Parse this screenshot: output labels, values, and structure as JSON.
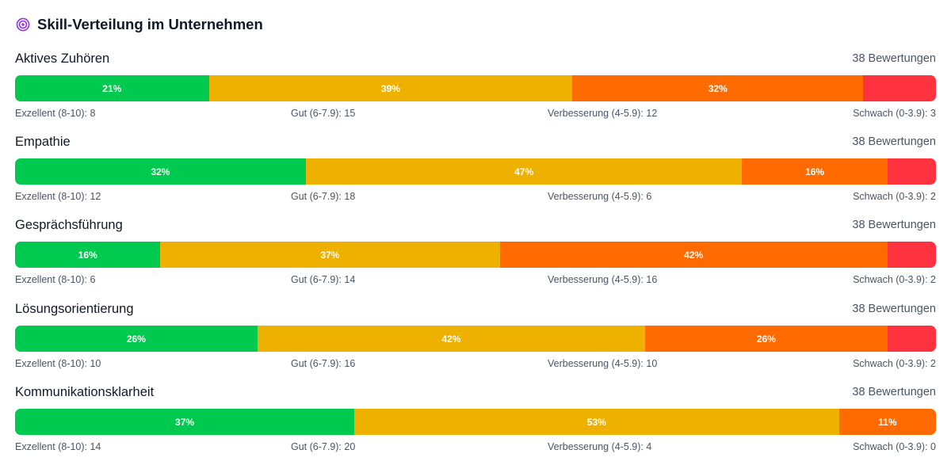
{
  "title": "Skill-Verteilung im Unternehmen",
  "icon": "target-icon",
  "colors": {
    "excellent": "#00c94f",
    "good": "#efb100",
    "improve": "#ff6b00",
    "weak": "#fe333f"
  },
  "chart_data": {
    "type": "bar",
    "stacked": "horizontal-100-percent",
    "categories": [
      "Exzellent (8-10)",
      "Gut (6-7.9)",
      "Verbesserung (4-5.9)",
      "Schwach (0-3.9)"
    ],
    "skills": [
      {
        "name": "Aktives Zuhören",
        "count_label": "38 Bewertungen",
        "counts": [
          8,
          15,
          12,
          3
        ],
        "labels": [
          "21%",
          "39%",
          "32%",
          ""
        ],
        "legend": [
          "Exzellent (8-10): 8",
          "Gut (6-7.9): 15",
          "Verbesserung (4-5.9): 12",
          "Schwach (0-3.9): 3"
        ]
      },
      {
        "name": "Empathie",
        "count_label": "38 Bewertungen",
        "counts": [
          12,
          18,
          6,
          2
        ],
        "labels": [
          "32%",
          "47%",
          "16%",
          ""
        ],
        "legend": [
          "Exzellent (8-10): 12",
          "Gut (6-7.9): 18",
          "Verbesserung (4-5.9): 6",
          "Schwach (0-3.9): 2"
        ]
      },
      {
        "name": "Gesprächsführung",
        "count_label": "38 Bewertungen",
        "counts": [
          6,
          14,
          16,
          2
        ],
        "labels": [
          "16%",
          "37%",
          "42%",
          ""
        ],
        "legend": [
          "Exzellent (8-10): 6",
          "Gut (6-7.9): 14",
          "Verbesserung (4-5.9): 16",
          "Schwach (0-3.9): 2"
        ]
      },
      {
        "name": "Lösungsorientierung",
        "count_label": "38 Bewertungen",
        "counts": [
          10,
          16,
          10,
          2
        ],
        "labels": [
          "26%",
          "42%",
          "26%",
          ""
        ],
        "legend": [
          "Exzellent (8-10): 10",
          "Gut (6-7.9): 16",
          "Verbesserung (4-5.9): 10",
          "Schwach (0-3.9): 2"
        ]
      },
      {
        "name": "Kommunikationsklarheit",
        "count_label": "38 Bewertungen",
        "counts": [
          14,
          20,
          4,
          0
        ],
        "labels": [
          "37%",
          "53%",
          "11%",
          ""
        ],
        "legend": [
          "Exzellent (8-10): 14",
          "Gut (6-7.9): 20",
          "Verbesserung (4-5.9): 4",
          "Schwach (0-3.9): 0"
        ]
      }
    ]
  }
}
